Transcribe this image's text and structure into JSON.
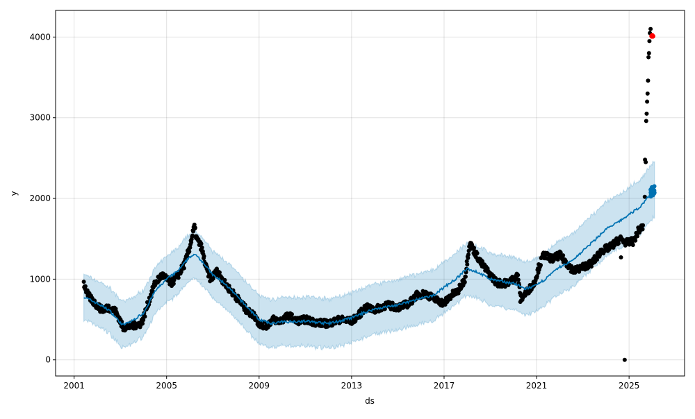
{
  "chart_data": {
    "type": "line",
    "title": "",
    "xlabel": "ds",
    "ylabel": "y",
    "xlim": [
      2000.2,
      2027.4
    ],
    "ylim": [
      -200,
      4330
    ],
    "grid": true,
    "x_ticks": [
      2001,
      2005,
      2009,
      2013,
      2017,
      2021,
      2025
    ],
    "x_tick_labels": [
      "2001",
      "2005",
      "2009",
      "2013",
      "2017",
      "2021",
      "2025"
    ],
    "y_ticks": [
      0,
      1000,
      2000,
      3000,
      4000
    ],
    "y_tick_labels": [
      "0",
      "1000",
      "2000",
      "3000",
      "4000"
    ],
    "colors": {
      "actual": "#000000",
      "forecast": "#0072B2",
      "interval": "#0072B2",
      "future_actual": "#ff0000"
    },
    "series": [
      {
        "name": "actual",
        "kind": "scatter",
        "x": [
          2001.42,
          2001.6,
          2001.9,
          2002.2,
          2002.5,
          2002.8,
          2003.0,
          2003.1,
          2003.5,
          2003.9,
          2004.0,
          2004.2,
          2004.5,
          2004.8,
          2005.0,
          2005.2,
          2005.5,
          2005.8,
          2006.0,
          2006.2,
          2006.3,
          2006.5,
          2006.7,
          2006.9,
          2007.2,
          2007.5,
          2007.8,
          2008.1,
          2008.5,
          2008.8,
          2009.0,
          2009.3,
          2009.6,
          2009.9,
          2010.3,
          2010.6,
          2011.0,
          2011.5,
          2012.0,
          2012.5,
          2013.0,
          2013.3,
          2013.6,
          2014.0,
          2014.5,
          2015.0,
          2015.5,
          2015.8,
          2016.2,
          2016.6,
          2017.0,
          2017.3,
          2017.6,
          2017.9,
          2018.1,
          2018.3,
          2018.6,
          2019.0,
          2019.3,
          2019.7,
          2020.0,
          2020.2,
          2020.3,
          2020.6,
          2020.9,
          2021.1,
          2021.3,
          2021.7,
          2022.0,
          2022.3,
          2022.6,
          2023.0,
          2023.4,
          2023.8,
          2024.2,
          2024.6,
          2024.9,
          2025.2,
          2025.4,
          2025.6
        ],
        "y": [
          950,
          800,
          700,
          620,
          650,
          600,
          480,
          400,
          420,
          450,
          520,
          700,
          950,
          1050,
          1000,
          950,
          1050,
          1200,
          1400,
          1650,
          1500,
          1400,
          1150,
          1000,
          1100,
          950,
          850,
          750,
          600,
          550,
          450,
          420,
          500,
          480,
          550,
          480,
          500,
          460,
          450,
          500,
          480,
          550,
          650,
          620,
          680,
          650,
          700,
          800,
          820,
          750,
          700,
          800,
          850,
          1000,
          1450,
          1350,
          1200,
          1050,
          950,
          950,
          1000,
          1050,
          750,
          850,
          950,
          1150,
          1300,
          1250,
          1300,
          1200,
          1100,
          1150,
          1200,
          1350,
          1400,
          1500,
          1450,
          1470,
          1600,
          1650
        ]
      },
      {
        "name": "actual_outliers",
        "kind": "scatter",
        "x": [
          2024.65,
          2024.81,
          2025.68,
          2025.69,
          2025.72,
          2025.74,
          2025.76,
          2025.78,
          2025.8,
          2025.82,
          2025.84,
          2025.86,
          2025.88,
          2025.9,
          2025.93
        ],
        "y": [
          1270,
          0,
          2020,
          2480,
          2450,
          2960,
          3050,
          3200,
          3300,
          3460,
          3750,
          3800,
          3950,
          4050,
          4100
        ]
      },
      {
        "name": "future_actual",
        "kind": "scatter",
        "x": [
          2025.98,
          2026.0,
          2026.03
        ],
        "y": [
          4010,
          4020,
          4010
        ]
      },
      {
        "name": "yhat",
        "kind": "line",
        "x": [
          2001.42,
          2002.0,
          2002.5,
          2003.1,
          2003.5,
          2004.0,
          2004.5,
          2005.0,
          2005.5,
          2006.0,
          2006.3,
          2006.6,
          2007.0,
          2007.5,
          2008.0,
          2008.5,
          2009.0,
          2009.5,
          2010.0,
          2011.0,
          2012.0,
          2012.5,
          2013.0,
          2013.5,
          2014.0,
          2015.0,
          2016.0,
          2016.5,
          2017.0,
          2017.5,
          2018.0,
          2018.5,
          2019.0,
          2019.5,
          2020.0,
          2020.5,
          2021.0,
          2021.5,
          2022.0,
          2022.5,
          2023.0,
          2023.5,
          2024.0,
          2024.5,
          2025.0,
          2025.5,
          2025.9,
          2026.1
        ],
        "y": [
          780,
          700,
          620,
          430,
          480,
          580,
          850,
          1000,
          1100,
          1280,
          1300,
          1200,
          1050,
          950,
          800,
          650,
          500,
          450,
          470,
          480,
          450,
          480,
          520,
          580,
          630,
          680,
          760,
          790,
          900,
          1000,
          1130,
          1080,
          1000,
          970,
          950,
          880,
          920,
          1030,
          1150,
          1220,
          1350,
          1480,
          1620,
          1700,
          1800,
          1900,
          2050,
          2120
        ]
      }
    ],
    "interval_halfwidth": {
      "start": 280,
      "end": 340
    },
    "forecast_start": 2025.93
  }
}
